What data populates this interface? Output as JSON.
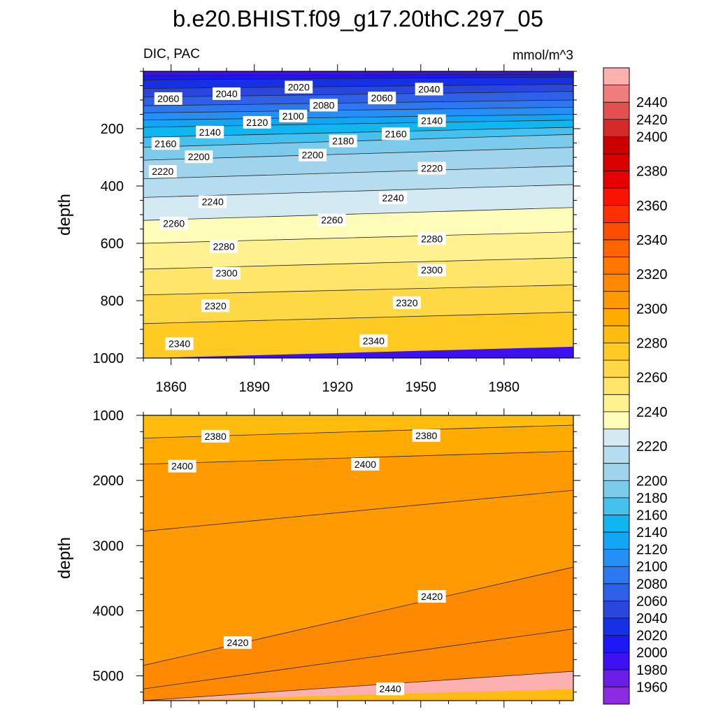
{
  "figure": {
    "title": "b.e20.BHIST.f09_g17.20thC.297_05",
    "variable_label": "DIC, PAC",
    "units_label": "mmol/m^3"
  },
  "chart_data": [
    {
      "type": "contour",
      "panel": "upper",
      "xlabel": "",
      "ylabel": "depth",
      "xlim": [
        1850,
        2005
      ],
      "ylim": [
        0,
        1000
      ],
      "y_reversed": true,
      "x_ticks": [
        1860,
        1890,
        1920,
        1950,
        1980
      ],
      "y_ticks": [
        200,
        400,
        600,
        800,
        1000
      ],
      "bands": [
        {
          "depth_start": [
            0,
            0
          ],
          "depth_end": [
            15,
            10
          ],
          "value": 1990
        },
        {
          "depth_start": [
            15,
            10
          ],
          "depth_end": [
            30,
            20
          ],
          "value": 2010
        },
        {
          "depth_start": [
            30,
            20
          ],
          "depth_end": [
            60,
            45
          ],
          "value": 2030
        },
        {
          "depth_start": [
            60,
            45
          ],
          "depth_end": [
            90,
            70
          ],
          "value": 2050
        },
        {
          "depth_start": [
            90,
            70
          ],
          "depth_end": [
            120,
            100
          ],
          "value": 2070
        },
        {
          "depth_start": [
            120,
            100
          ],
          "depth_end": [
            145,
            125
          ],
          "value": 2090
        },
        {
          "depth_start": [
            145,
            125
          ],
          "depth_end": [
            170,
            150
          ],
          "value": 2110
        },
        {
          "depth_start": [
            170,
            150
          ],
          "depth_end": [
            195,
            170
          ],
          "value": 2130
        },
        {
          "depth_start": [
            195,
            170
          ],
          "depth_end": [
            230,
            195
          ],
          "value": 2150
        },
        {
          "depth_start": [
            230,
            195
          ],
          "depth_end": [
            265,
            220
          ],
          "value": 2170
        },
        {
          "depth_start": [
            265,
            220
          ],
          "depth_end": [
            310,
            265
          ],
          "value": 2190
        },
        {
          "depth_start": [
            310,
            265
          ],
          "depth_end": [
            375,
            330
          ],
          "value": 2210
        },
        {
          "depth_start": [
            375,
            330
          ],
          "depth_end": [
            440,
            395
          ],
          "value": 2230
        },
        {
          "depth_start": [
            440,
            395
          ],
          "depth_end": [
            520,
            475
          ],
          "value": 2250
        },
        {
          "depth_start": [
            520,
            475
          ],
          "depth_end": [
            600,
            560
          ],
          "value": 2270
        },
        {
          "depth_start": [
            600,
            560
          ],
          "depth_end": [
            690,
            650
          ],
          "value": 2290
        },
        {
          "depth_start": [
            690,
            650
          ],
          "depth_end": [
            780,
            745
          ],
          "value": 2310
        },
        {
          "depth_start": [
            780,
            745
          ],
          "depth_end": [
            880,
            840
          ],
          "value": 2330
        },
        {
          "depth_start": [
            880,
            840
          ],
          "depth_end": [
            1000,
            960
          ],
          "value": 2350
        }
      ],
      "contour_labels": [
        {
          "text": "2060",
          "x": 1859,
          "y": 95
        },
        {
          "text": "2040",
          "x": 1880,
          "y": 78
        },
        {
          "text": "2020",
          "x": 1906,
          "y": 55
        },
        {
          "text": "2080",
          "x": 1915,
          "y": 118
        },
        {
          "text": "2060",
          "x": 1936,
          "y": 93
        },
        {
          "text": "2040",
          "x": 1953,
          "y": 62
        },
        {
          "text": "2120",
          "x": 1891,
          "y": 178
        },
        {
          "text": "2100",
          "x": 1904,
          "y": 156
        },
        {
          "text": "2140",
          "x": 1874,
          "y": 212
        },
        {
          "text": "2160",
          "x": 1858,
          "y": 252
        },
        {
          "text": "2180",
          "x": 1922,
          "y": 243
        },
        {
          "text": "2160",
          "x": 1941,
          "y": 218
        },
        {
          "text": "2140",
          "x": 1954,
          "y": 172
        },
        {
          "text": "2200",
          "x": 1870,
          "y": 298
        },
        {
          "text": "2200",
          "x": 1911,
          "y": 292
        },
        {
          "text": "2220",
          "x": 1857,
          "y": 349
        },
        {
          "text": "2220",
          "x": 1954,
          "y": 338
        },
        {
          "text": "2240",
          "x": 1875,
          "y": 455
        },
        {
          "text": "2240",
          "x": 1940,
          "y": 441
        },
        {
          "text": "2260",
          "x": 1861,
          "y": 530
        },
        {
          "text": "2260",
          "x": 1918,
          "y": 518
        },
        {
          "text": "2280",
          "x": 1879,
          "y": 611
        },
        {
          "text": "2280",
          "x": 1954,
          "y": 584
        },
        {
          "text": "2300",
          "x": 1880,
          "y": 704
        },
        {
          "text": "2300",
          "x": 1954,
          "y": 693
        },
        {
          "text": "2320",
          "x": 1876,
          "y": 818
        },
        {
          "text": "2320",
          "x": 1945,
          "y": 807
        },
        {
          "text": "2340",
          "x": 1863,
          "y": 950
        },
        {
          "text": "2340",
          "x": 1933,
          "y": 940
        }
      ]
    },
    {
      "type": "contour",
      "panel": "lower",
      "xlabel": "",
      "ylabel": "depth",
      "xlim": [
        1850,
        2005
      ],
      "ylim": [
        1000,
        5380
      ],
      "y_reversed": true,
      "x_ticks": [
        1860,
        1890,
        1920,
        1950,
        1980
      ],
      "y_ticks": [
        1000,
        2000,
        3000,
        4000,
        5000
      ],
      "bands": [
        {
          "depth_start": [
            1000,
            1000
          ],
          "depth_end": [
            1350,
            1150
          ],
          "value": 2370
        },
        {
          "depth_start": [
            1350,
            1150
          ],
          "depth_end": [
            1750,
            1550
          ],
          "value": 2390
        },
        {
          "depth_start": [
            1750,
            1550
          ],
          "depth_end": [
            2780,
            2150
          ],
          "value": 2405
        },
        {
          "depth_start": [
            2780,
            2150
          ],
          "depth_end": [
            4840,
            3330
          ],
          "value": 2415
        },
        {
          "depth_start": [
            4840,
            3330
          ],
          "depth_end": [
            5200,
            4280
          ],
          "value": 2425
        },
        {
          "depth_start": [
            5200,
            4280
          ],
          "depth_end": [
            5380,
            4930
          ],
          "value": 2435
        },
        {
          "depth_start": [
            5380,
            4930
          ],
          "depth_end": [
            5380,
            5200
          ],
          "value": 2445
        }
      ],
      "contour_labels": [
        {
          "text": "2380",
          "x": 1876,
          "y": 1320
        },
        {
          "text": "2380",
          "x": 1952,
          "y": 1310
        },
        {
          "text": "2400",
          "x": 1864,
          "y": 1780
        },
        {
          "text": "2400",
          "x": 1930,
          "y": 1750
        },
        {
          "text": "2420",
          "x": 1954,
          "y": 3780
        },
        {
          "text": "2420",
          "x": 1884,
          "y": 4490
        },
        {
          "text": "2440",
          "x": 1939,
          "y": 5200
        }
      ]
    },
    {
      "type": "colorbar",
      "levels": [
        1960,
        1980,
        2000,
        2020,
        2040,
        2060,
        2080,
        2100,
        2120,
        2140,
        2160,
        2180,
        2200,
        2220,
        2240,
        2260,
        2280,
        2300,
        2320,
        2340,
        2360,
        2380,
        2400,
        2420,
        2440
      ],
      "labels": [
        "1960",
        "1980",
        "2000",
        "2020",
        "2040",
        "2060",
        "2080",
        "2100",
        "2120",
        "2140",
        "2160",
        "2180",
        "2200",
        "2220",
        "2240",
        "2260",
        "2280",
        "2300",
        "2320",
        "2340",
        "2360",
        "2380",
        "2400",
        "2420",
        "2440"
      ],
      "colors": [
        "#8b2be2",
        "#6a1de6",
        "#3d11ef",
        "#1c18f5",
        "#1630e8",
        "#2a47dd",
        "#2f61e8",
        "#2d78f0",
        "#268ff5",
        "#11a6f5",
        "#0fb6f0",
        "#45c1f0",
        "#7ccbed",
        "#9fd4ec",
        "#b6ddef",
        "#d4eaf3",
        "#fffbb8",
        "#fff190",
        "#ffe56a",
        "#ffd845",
        "#ffcb23",
        "#ffbc0e",
        "#ffab00",
        "#ff9a00",
        "#ff8900",
        "#ff7600",
        "#ff6400",
        "#ff4d00",
        "#ff3000",
        "#f81400",
        "#e80000",
        "#d80000",
        "#c80000",
        "#d42a2a",
        "#e35050",
        "#ef7d7d",
        "#fcb0b0"
      ]
    }
  ]
}
